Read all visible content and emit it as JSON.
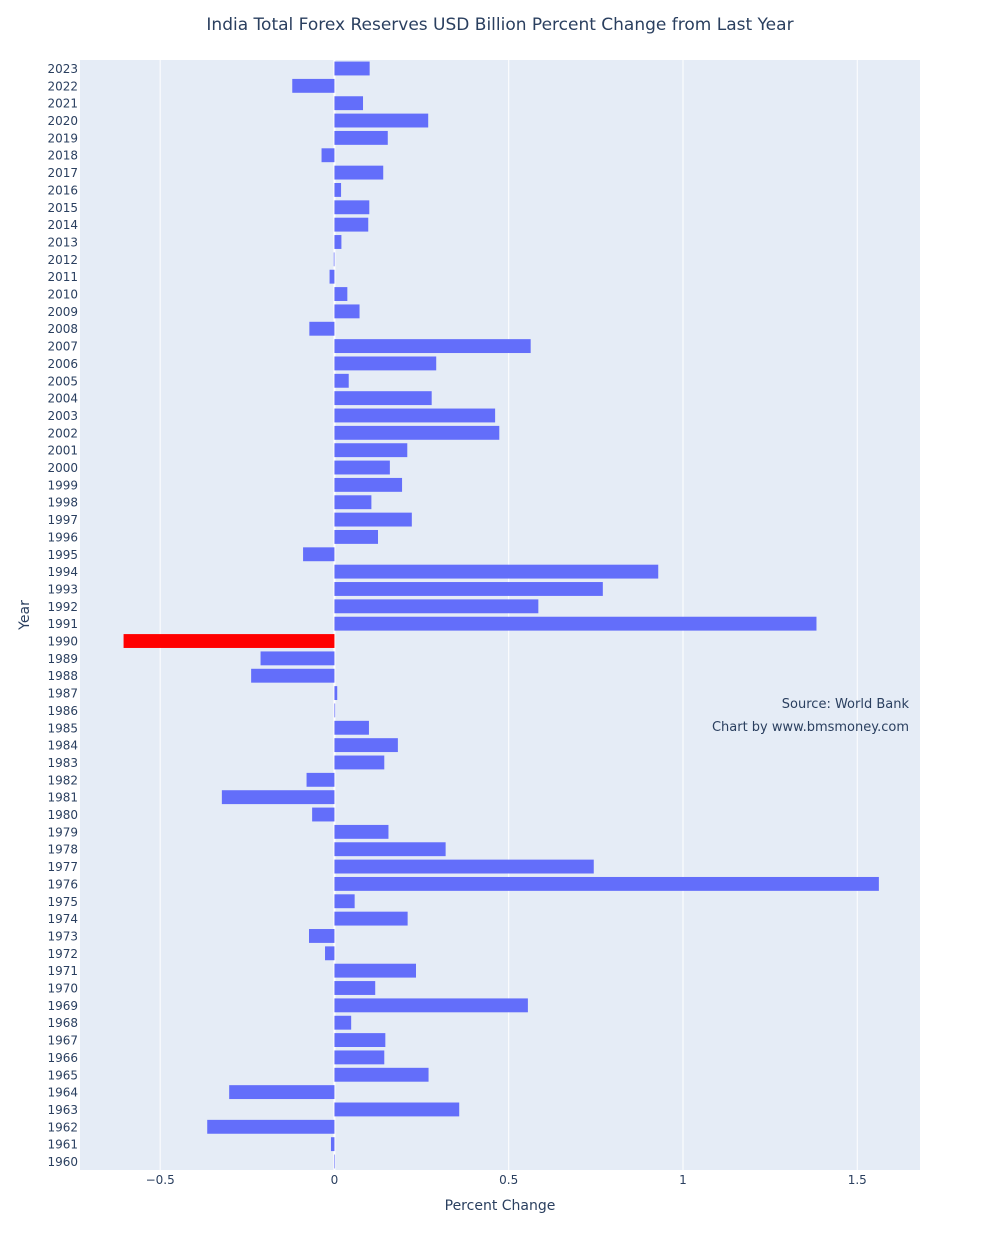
{
  "chart_data": {
    "type": "bar",
    "orientation": "horizontal",
    "title": "India Total Forex Reserves USD Billion Percent Change from Last Year",
    "xlabel": "Percent Change",
    "ylabel": "Year",
    "xlim": [
      -0.73,
      1.68
    ],
    "x_ticks": [
      -0.5,
      0,
      0.5,
      1,
      1.5
    ],
    "x_tick_labels": [
      "−0.5",
      "0",
      "0.5",
      "1",
      "1.5"
    ],
    "grid": true,
    "colors": {
      "bar": "#636efa",
      "highlight": "#ff0000",
      "plot_bg": "#e5ecf6",
      "grid": "#ffffff"
    },
    "highlight_category": "1990",
    "categories": [
      "1960",
      "1961",
      "1962",
      "1963",
      "1964",
      "1965",
      "1966",
      "1967",
      "1968",
      "1969",
      "1970",
      "1971",
      "1972",
      "1973",
      "1974",
      "1975",
      "1976",
      "1977",
      "1978",
      "1979",
      "1980",
      "1981",
      "1982",
      "1983",
      "1984",
      "1985",
      "1986",
      "1987",
      "1988",
      "1989",
      "1990",
      "1991",
      "1992",
      "1993",
      "1994",
      "1995",
      "1996",
      "1997",
      "1998",
      "1999",
      "2000",
      "2001",
      "2002",
      "2003",
      "2004",
      "2005",
      "2006",
      "2007",
      "2008",
      "2009",
      "2010",
      "2011",
      "2012",
      "2013",
      "2014",
      "2015",
      "2016",
      "2017",
      "2018",
      "2019",
      "2020",
      "2021",
      "2022",
      "2023"
    ],
    "values": [
      0,
      -0.01,
      -0.365,
      0.358,
      -0.302,
      0.27,
      0.143,
      0.146,
      0.048,
      0.555,
      0.117,
      0.234,
      -0.027,
      -0.073,
      0.21,
      0.058,
      1.562,
      0.744,
      0.319,
      0.155,
      -0.064,
      -0.323,
      -0.08,
      0.143,
      0.182,
      0.099,
      0.002,
      0.008,
      -0.239,
      -0.212,
      -0.605,
      1.383,
      0.585,
      0.77,
      0.929,
      -0.09,
      0.125,
      0.222,
      0.106,
      0.194,
      0.159,
      0.209,
      0.473,
      0.461,
      0.279,
      0.041,
      0.292,
      0.563,
      -0.072,
      0.072,
      0.037,
      -0.014,
      -0.002,
      0.02,
      0.097,
      0.1,
      0.019,
      0.14,
      -0.037,
      0.153,
      0.269,
      0.082,
      -0.121,
      0.101
    ]
  },
  "annotations": {
    "source": "Source: World Bank",
    "credit": "Chart by www.bmsmoney.com"
  }
}
